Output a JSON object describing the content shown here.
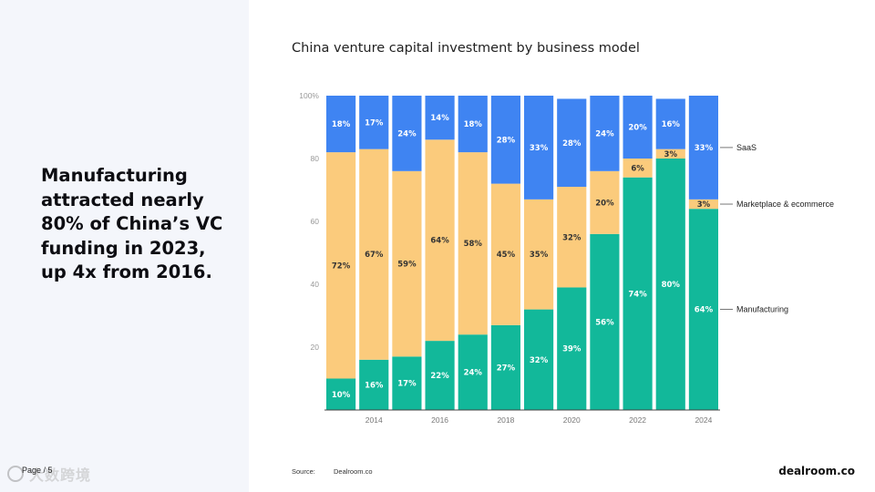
{
  "headline": "Manufacturing attracted nearly 80% of China’s VC funding in 2023, up 4x from 2016.",
  "page_label": "Page / 5",
  "watermark": "大数跨境",
  "source": {
    "label": "Source:",
    "value": "Dealroom.co"
  },
  "logo": "dealroom.co",
  "colors": {
    "manufacturing": "#12b89a",
    "marketplace": "#fbcb7c",
    "saas": "#3f84f2",
    "panel": "#f4f6fb"
  },
  "chart_data": {
    "type": "bar",
    "stacked": true,
    "title": "China venture capital investment by business model",
    "xlabel": "",
    "ylabel": "",
    "ylim": [
      0,
      100
    ],
    "yticks": [
      "20",
      "40",
      "60",
      "80",
      "100%"
    ],
    "ytick_values": [
      20,
      40,
      60,
      80,
      100
    ],
    "categories": [
      2013,
      2014,
      2015,
      2016,
      2017,
      2018,
      2019,
      2020,
      2021,
      2022,
      2023,
      2024
    ],
    "xtick_labels": [
      "",
      "2014",
      "",
      "2016",
      "",
      "2018",
      "",
      "2020",
      "",
      "2022",
      "",
      "2024"
    ],
    "grid": false,
    "legend_placement": "right, labels pointing to last bar",
    "series": [
      {
        "name": "Manufacturing",
        "values": [
          10,
          16,
          17,
          22,
          24,
          27,
          32,
          39,
          56,
          74,
          80,
          64
        ]
      },
      {
        "name": "Marketplace & ecommerce",
        "values": [
          72,
          67,
          59,
          64,
          58,
          45,
          35,
          32,
          20,
          6,
          3,
          3
        ]
      },
      {
        "name": "SaaS",
        "values": [
          18,
          17,
          24,
          14,
          18,
          28,
          33,
          28,
          24,
          20,
          16,
          33
        ]
      }
    ]
  }
}
